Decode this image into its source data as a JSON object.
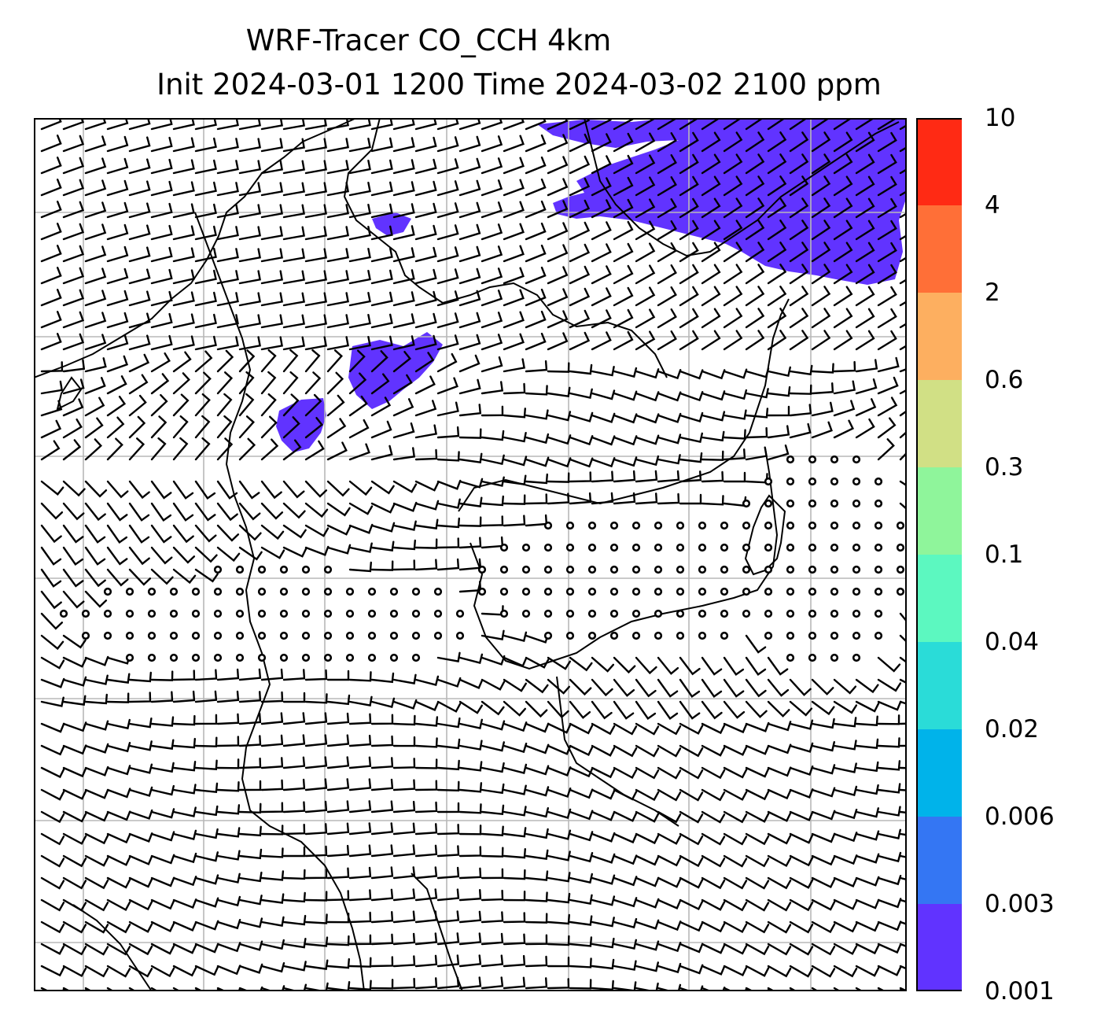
{
  "title": {
    "line1": "WRF-Tracer CO_CCH 4km",
    "line2": "Init 2024-03-01 1200 Time 2024-03-02 2100 ppm"
  },
  "colorbar": {
    "labels": [
      "10",
      "4",
      "2",
      "0.6",
      "0.3",
      "0.1",
      "0.04",
      "0.02",
      "0.006",
      "0.003",
      "0.001"
    ],
    "colors": [
      "#ff2a14",
      "#ff6f37",
      "#fdaf60",
      "#d1e085",
      "#8ff59b",
      "#5cf8c0",
      "#2adcd8",
      "#00b3ea",
      "#3476f3",
      "#6133ff"
    ]
  },
  "map": {
    "tracer_fill_color": "#6133ff",
    "gridline_color": "#b8b8b8",
    "coastline_color": "#000000",
    "wind_barb_color": "#000000"
  }
}
